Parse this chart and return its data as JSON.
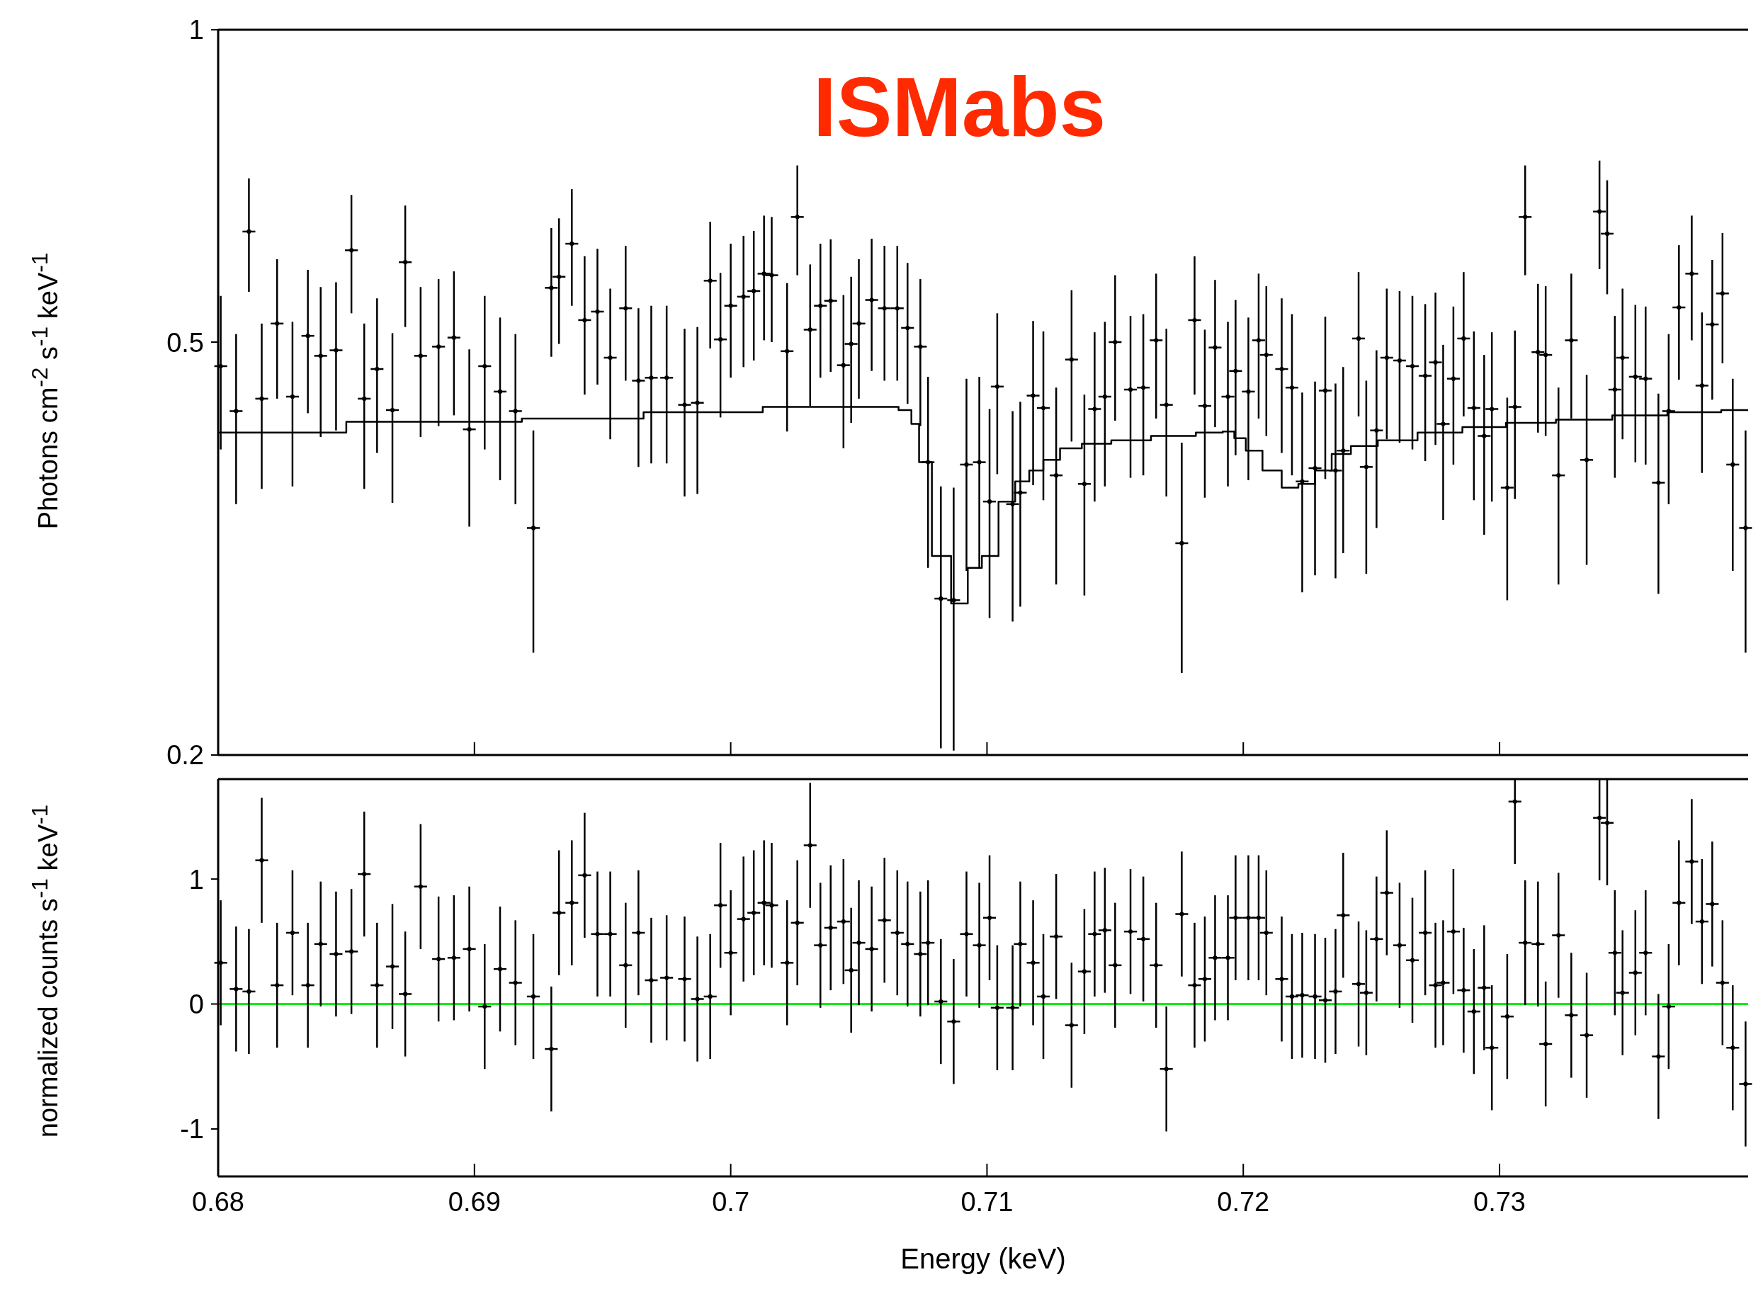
{
  "chart_data": [
    {
      "type": "scatter",
      "title": "ISMabs",
      "ylabel": "Photons cm$^{-2}$ s$^{-1}$ keV$^{-1}$",
      "log": "y",
      "tick_labels": "y",
      "xlim": [
        0.68,
        0.7397
      ],
      "xticks": [
        0.68,
        0.69,
        0.7,
        0.71,
        0.72,
        0.73
      ],
      "ylim": [
        0.2,
        1
      ],
      "yticks": [
        0.2,
        0.5,
        1
      ],
      "x": [
        0.6801,
        0.6807,
        0.6812,
        0.6817,
        0.6823,
        0.6829,
        0.6835,
        0.684,
        0.6846,
        0.6852,
        0.6857,
        0.6862,
        0.6868,
        0.6873,
        0.6879,
        0.6886,
        0.6892,
        0.6898,
        0.6904,
        0.691,
        0.6916,
        0.6923,
        0.693,
        0.6933,
        0.6938,
        0.6943,
        0.6948,
        0.6953,
        0.6959,
        0.6964,
        0.6969,
        0.6975,
        0.6982,
        0.6987,
        0.6992,
        0.6996,
        0.7,
        0.7005,
        0.7009,
        0.7013,
        0.7016,
        0.7022,
        0.7026,
        0.7031,
        0.7035,
        0.7039,
        0.7044,
        0.7047,
        0.705,
        0.7055,
        0.706,
        0.7065,
        0.7069,
        0.7074,
        0.7077,
        0.7082,
        0.7087,
        0.7092,
        0.7097,
        0.7101,
        0.7104,
        0.711,
        0.7113,
        0.7118,
        0.7122,
        0.7127,
        0.7133,
        0.7138,
        0.7142,
        0.7146,
        0.715,
        0.7156,
        0.7161,
        0.7166,
        0.717,
        0.7176,
        0.7181,
        0.7185,
        0.7189,
        0.7194,
        0.7197,
        0.7202,
        0.7206,
        0.7209,
        0.7215,
        0.7219,
        0.7223,
        0.7228,
        0.7232,
        0.7236,
        0.7239,
        0.7245,
        0.7248,
        0.7252,
        0.7256,
        0.7261,
        0.7266,
        0.7271,
        0.7275,
        0.7278,
        0.7282,
        0.7286,
        0.729,
        0.7294,
        0.7297,
        0.7303,
        0.7306,
        0.731,
        0.7315,
        0.7318,
        0.7323,
        0.7328,
        0.7334,
        0.7339,
        0.7342,
        0.7345,
        0.7348,
        0.7353,
        0.7357,
        0.7362,
        0.7366,
        0.737,
        0.7375,
        0.7379,
        0.7383,
        0.7387,
        0.7391,
        0.7396
      ],
      "series": [
        {
          "color": "#000000",
          "values": [
            0.474,
            0.429,
            0.639,
            0.441,
            0.521,
            0.443,
            0.507,
            0.485,
            0.491,
            0.613,
            0.441,
            0.471,
            0.43,
            0.597,
            0.485,
            0.495,
            0.505,
            0.412,
            0.474,
            0.448,
            0.429,
            0.331,
            0.564,
            0.578,
            0.622,
            0.525,
            0.535,
            0.483,
            0.539,
            0.459,
            0.462,
            0.462,
            0.435,
            0.437,
            0.573,
            0.503,
            0.542,
            0.553,
            0.56,
            0.582,
            0.58,
            0.49,
            0.66,
            0.514,
            0.542,
            0.548,
            0.475,
            0.498,
            0.521,
            0.549,
            0.539,
            0.539,
            0.516,
            0.495,
            0.383,
            0.283,
            0.282,
            0.381,
            0.383,
            0.351,
            0.453,
            0.349,
            0.358,
            0.444,
            0.432,
            0.372,
            0.481,
            0.365,
            0.431,
            0.443,
            0.5,
            0.45,
            0.452,
            0.502,
            0.435,
            0.32,
            0.525,
            0.434,
            0.494,
            0.443,
            0.469,
            0.448,
            0.502,
            0.486,
            0.471,
            0.452,
            0.367,
            0.378,
            0.449,
            0.376,
            0.393,
            0.504,
            0.379,
            0.411,
            0.483,
            0.48,
            0.474,
            0.464,
            0.478,
            0.417,
            0.461,
            0.504,
            0.432,
            0.406,
            0.431,
            0.362,
            0.433,
            0.66,
            0.489,
            0.486,
            0.372,
            0.502,
            0.385,
            0.668,
            0.636,
            0.45,
            0.483,
            0.463,
            0.461,
            0.366,
            0.429,
            0.54,
            0.582,
            0.454,
            0.52,
            0.557,
            0.381,
            0.331
          ],
          "errors": [
            0.08,
            0.08,
            0.08,
            0.08,
            0.08,
            0.08,
            0.08,
            0.08,
            0.08,
            0.08,
            0.08,
            0.08,
            0.08,
            0.08,
            0.08,
            0.08,
            0.08,
            0.08,
            0.08,
            0.08,
            0.08,
            0.08,
            0.08,
            0.08,
            0.08,
            0.08,
            0.08,
            0.08,
            0.08,
            0.08,
            0.08,
            0.08,
            0.08,
            0.08,
            0.08,
            0.08,
            0.08,
            0.08,
            0.08,
            0.08,
            0.08,
            0.08,
            0.08,
            0.08,
            0.08,
            0.08,
            0.08,
            0.08,
            0.08,
            0.08,
            0.08,
            0.08,
            0.08,
            0.08,
            0.08,
            0.08,
            0.08,
            0.08,
            0.08,
            0.08,
            0.08,
            0.08,
            0.08,
            0.08,
            0.08,
            0.08,
            0.08,
            0.08,
            0.08,
            0.08,
            0.08,
            0.08,
            0.08,
            0.08,
            0.08,
            0.08,
            0.08,
            0.08,
            0.08,
            0.08,
            0.08,
            0.08,
            0.08,
            0.08,
            0.08,
            0.08,
            0.08,
            0.08,
            0.08,
            0.08,
            0.08,
            0.08,
            0.08,
            0.08,
            0.08,
            0.08,
            0.08,
            0.08,
            0.08,
            0.08,
            0.08,
            0.08,
            0.08,
            0.08,
            0.08,
            0.08,
            0.08,
            0.08,
            0.08,
            0.08,
            0.08,
            0.08,
            0.08,
            0.08,
            0.08,
            0.08,
            0.08,
            0.08,
            0.08,
            0.08,
            0.08,
            0.08,
            0.08,
            0.08,
            0.08,
            0.08,
            0.08,
            0.08
          ],
          "xerrors": [
            0.00025,
            0.00025,
            0.00025,
            0.00025,
            0.00025,
            0.00025,
            0.00025,
            0.00025,
            0.00025,
            0.00025,
            0.00025,
            0.00025,
            0.00025,
            0.00025,
            0.00025,
            0.00025,
            0.00025,
            0.00025,
            0.00025,
            0.00025,
            0.00025,
            0.00025,
            0.00025,
            0.00025,
            0.00025,
            0.00025,
            0.00025,
            0.00025,
            0.00025,
            0.00025,
            0.00025,
            0.00025,
            0.00025,
            0.00025,
            0.00025,
            0.00025,
            0.00025,
            0.00025,
            0.00025,
            0.00025,
            0.00025,
            0.00025,
            0.00025,
            0.00025,
            0.00025,
            0.00025,
            0.00025,
            0.00025,
            0.00025,
            0.00025,
            0.00025,
            0.00025,
            0.00025,
            0.00025,
            0.00025,
            0.00025,
            0.00025,
            0.00025,
            0.00025,
            0.00025,
            0.00025,
            0.00025,
            0.00025,
            0.00025,
            0.00025,
            0.00025,
            0.00025,
            0.00025,
            0.00025,
            0.00025,
            0.00025,
            0.00025,
            0.00025,
            0.00025,
            0.00025,
            0.00025,
            0.00025,
            0.00025,
            0.00025,
            0.00025,
            0.00025,
            0.00025,
            0.00025,
            0.00025,
            0.00025,
            0.00025,
            0.00025,
            0.00025,
            0.00025,
            0.00025,
            0.00025,
            0.00025,
            0.00025,
            0.00025,
            0.00025,
            0.00025,
            0.00025,
            0.00025,
            0.00025,
            0.00025,
            0.00025,
            0.00025,
            0.00025,
            0.00025,
            0.00025,
            0.00025,
            0.00025,
            0.00025,
            0.00025,
            0.00025,
            0.00025,
            0.00025,
            0.00025,
            0.00025,
            0.00025,
            0.00025,
            0.00025,
            0.00025,
            0.00025,
            0.00025,
            0.00025,
            0.00025,
            0.00025,
            0.00025,
            0.00025,
            0.00025,
            0.00025,
            0.00025
          ]
        },
        {
          "type": "step",
          "color": "#000000",
          "x": [
            0.68,
            0.69,
            0.6937,
            0.6995,
            0.703,
            0.7062,
            0.7069,
            0.7072,
            0.7075,
            0.7082,
            0.709,
            0.7095,
            0.7101,
            0.7108,
            0.7114,
            0.7119,
            0.7125,
            0.7132,
            0.7142,
            0.7155,
            0.7173,
            0.719,
            0.7194,
            0.7199,
            0.7203,
            0.7212,
            0.7218,
            0.7225,
            0.7231,
            0.7238,
            0.7246,
            0.7259,
            0.7277,
            0.7294,
            0.7311,
            0.7333,
            0.7355,
            0.7376,
            0.7397
          ],
          "values": [
            0.409,
            0.419,
            0.422,
            0.428,
            0.433,
            0.433,
            0.43,
            0.417,
            0.383,
            0.311,
            0.28,
            0.303,
            0.311,
            0.351,
            0.367,
            0.376,
            0.385,
            0.395,
            0.399,
            0.402,
            0.406,
            0.409,
            0.41,
            0.404,
            0.393,
            0.376,
            0.362,
            0.365,
            0.376,
            0.39,
            0.397,
            0.402,
            0.409,
            0.414,
            0.418,
            0.421,
            0.425,
            0.428,
            0.43
          ]
        }
      ]
    },
    {
      "type": "scatter",
      "xlabel": "Energy (keV)",
      "ylabel": "normalized counts s$^{-1}$ keV$^{-1}$",
      "xlim": [
        0.68,
        0.7397
      ],
      "xticks": [
        0.68,
        0.69,
        0.7,
        0.71,
        0.72,
        0.73
      ],
      "ylim": [
        -1.38,
        1.8
      ],
      "yticks": [
        -1,
        0,
        1
      ],
      "ref_lines": [
        {
          "axis": "y",
          "value": 0,
          "color": "#00ee00"
        }
      ],
      "x": [
        0.6801,
        0.6807,
        0.6812,
        0.6817,
        0.6823,
        0.6829,
        0.6835,
        0.684,
        0.6846,
        0.6852,
        0.6857,
        0.6862,
        0.6868,
        0.6873,
        0.6879,
        0.6886,
        0.6892,
        0.6898,
        0.6904,
        0.691,
        0.6916,
        0.6923,
        0.693,
        0.6933,
        0.6938,
        0.6943,
        0.6948,
        0.6953,
        0.6959,
        0.6964,
        0.6969,
        0.6975,
        0.6982,
        0.6987,
        0.6992,
        0.6996,
        0.7,
        0.7005,
        0.7009,
        0.7013,
        0.7016,
        0.7022,
        0.7026,
        0.7031,
        0.7035,
        0.7039,
        0.7044,
        0.7047,
        0.705,
        0.7055,
        0.706,
        0.7065,
        0.7069,
        0.7074,
        0.7077,
        0.7082,
        0.7087,
        0.7092,
        0.7097,
        0.7101,
        0.7104,
        0.711,
        0.7113,
        0.7118,
        0.7122,
        0.7127,
        0.7133,
        0.7138,
        0.7142,
        0.7146,
        0.715,
        0.7156,
        0.7161,
        0.7166,
        0.717,
        0.7176,
        0.7181,
        0.7185,
        0.7189,
        0.7194,
        0.7197,
        0.7202,
        0.7206,
        0.7209,
        0.7215,
        0.7219,
        0.7223,
        0.7228,
        0.7232,
        0.7236,
        0.7239,
        0.7245,
        0.7248,
        0.7252,
        0.7256,
        0.7261,
        0.7266,
        0.7271,
        0.7275,
        0.7278,
        0.7282,
        0.7286,
        0.729,
        0.7294,
        0.7297,
        0.7303,
        0.7306,
        0.731,
        0.7315,
        0.7318,
        0.7323,
        0.7328,
        0.7334,
        0.7339,
        0.7342,
        0.7345,
        0.7348,
        0.7353,
        0.7357,
        0.7362,
        0.7366,
        0.737,
        0.7375,
        0.7379,
        0.7383,
        0.7387,
        0.7391,
        0.7396
      ],
      "series": [
        {
          "color": "#000000",
          "values": [
            0.33,
            0.12,
            0.1,
            1.15,
            0.15,
            0.57,
            0.15,
            0.48,
            0.4,
            0.42,
            1.04,
            0.15,
            0.3,
            0.08,
            0.94,
            0.36,
            0.37,
            0.44,
            -0.02,
            0.28,
            0.17,
            0.06,
            -0.36,
            0.73,
            0.81,
            1.03,
            0.56,
            0.56,
            0.31,
            0.57,
            0.19,
            0.21,
            0.2,
            0.04,
            0.06,
            0.79,
            0.41,
            0.68,
            0.73,
            0.81,
            0.79,
            0.33,
            0.65,
            1.27,
            0.47,
            0.61,
            0.66,
            0.27,
            0.49,
            0.44,
            0.67,
            0.57,
            0.48,
            0.4,
            0.49,
            0.02,
            -0.14,
            0.56,
            0.47,
            0.69,
            -0.03,
            -0.03,
            0.48,
            0.33,
            0.06,
            0.54,
            -0.17,
            0.26,
            0.56,
            0.59,
            0.31,
            0.58,
            0.52,
            0.31,
            -0.52,
            0.72,
            0.15,
            0.2,
            0.37,
            0.37,
            0.69,
            0.69,
            0.69,
            0.57,
            0.2,
            0.06,
            0.07,
            0.06,
            0.03,
            0.1,
            0.71,
            0.16,
            0.09,
            0.52,
            0.89,
            0.47,
            0.35,
            0.57,
            0.15,
            0.17,
            0.58,
            0.11,
            -0.06,
            0.13,
            -0.35,
            -0.1,
            1.62,
            0.49,
            0.48,
            -0.32,
            0.55,
            -0.09,
            -0.25,
            1.49,
            1.45,
            0.41,
            0.09,
            0.25,
            0.41,
            -0.42,
            -0.02,
            0.81,
            1.14,
            0.66,
            0.8,
            0.17,
            -0.35,
            -0.64
          ],
          "errors": [
            0.5,
            0.5,
            0.5,
            0.5,
            0.5,
            0.5,
            0.5,
            0.5,
            0.5,
            0.5,
            0.5,
            0.5,
            0.5,
            0.5,
            0.5,
            0.5,
            0.5,
            0.5,
            0.5,
            0.5,
            0.5,
            0.5,
            0.5,
            0.5,
            0.5,
            0.5,
            0.5,
            0.5,
            0.5,
            0.5,
            0.5,
            0.5,
            0.5,
            0.5,
            0.5,
            0.5,
            0.5,
            0.5,
            0.5,
            0.5,
            0.5,
            0.5,
            0.5,
            0.5,
            0.5,
            0.5,
            0.5,
            0.5,
            0.5,
            0.5,
            0.5,
            0.5,
            0.5,
            0.5,
            0.5,
            0.5,
            0.5,
            0.5,
            0.5,
            0.5,
            0.5,
            0.5,
            0.5,
            0.5,
            0.5,
            0.5,
            0.5,
            0.5,
            0.5,
            0.5,
            0.5,
            0.5,
            0.5,
            0.5,
            0.5,
            0.5,
            0.5,
            0.5,
            0.5,
            0.5,
            0.5,
            0.5,
            0.5,
            0.5,
            0.5,
            0.5,
            0.5,
            0.5,
            0.5,
            0.5,
            0.5,
            0.5,
            0.5,
            0.5,
            0.5,
            0.5,
            0.5,
            0.5,
            0.5,
            0.5,
            0.5,
            0.5,
            0.5,
            0.5,
            0.5,
            0.5,
            [
              1.12,
              1.8
            ],
            0.5,
            0.5,
            0.5,
            0.5,
            0.5,
            0.5,
            [
              0.99,
              1.8
            ],
            [
              0.95,
              1.8
            ],
            0.5,
            0.5,
            0.5,
            0.5,
            0.5,
            0.5,
            0.5,
            0.5,
            0.5,
            0.5,
            0.5,
            0.5,
            0.5
          ],
          "xerrors": [
            0.00025,
            0.00025,
            0.00025,
            0.00025,
            0.00025,
            0.00025,
            0.00025,
            0.00025,
            0.00025,
            0.00025,
            0.00025,
            0.00025,
            0.00025,
            0.00025,
            0.00025,
            0.00025,
            0.00025,
            0.00025,
            0.00025,
            0.00025,
            0.00025,
            0.00025,
            0.00025,
            0.00025,
            0.00025,
            0.00025,
            0.00025,
            0.00025,
            0.00025,
            0.00025,
            0.00025,
            0.00025,
            0.00025,
            0.00025,
            0.00025,
            0.00025,
            0.00025,
            0.00025,
            0.00025,
            0.00025,
            0.00025,
            0.00025,
            0.00025,
            0.00025,
            0.00025,
            0.00025,
            0.00025,
            0.00025,
            0.00025,
            0.00025,
            0.00025,
            0.00025,
            0.00025,
            0.00025,
            0.00025,
            0.00025,
            0.00025,
            0.00025,
            0.00025,
            0.00025,
            0.00025,
            0.00025,
            0.00025,
            0.00025,
            0.00025,
            0.00025,
            0.00025,
            0.00025,
            0.00025,
            0.00025,
            0.00025,
            0.00025,
            0.00025,
            0.00025,
            0.00025,
            0.00025,
            0.00025,
            0.00025,
            0.00025,
            0.00025,
            0.00025,
            0.00025,
            0.00025,
            0.00025,
            0.00025,
            0.00025,
            0.00025,
            0.00025,
            0.00025,
            0.00025,
            0.00025,
            0.00025,
            0.00025,
            0.00025,
            0.00025,
            0.00025,
            0.00025,
            0.00025,
            0.00025,
            0.00025,
            0.00025,
            0.00025,
            0.00025,
            0.00025,
            0.00025,
            0.00025,
            0.00025,
            0.00025,
            0.00025,
            0.00025,
            0.00025,
            0.00025,
            0.00025,
            0.00025,
            0.00025,
            0.00025,
            0.00025,
            0.00025,
            0.00025,
            0.00025,
            0.00025,
            0.00025,
            0.00025,
            0.00025,
            0.00025,
            0.00025,
            0.00025,
            0.00025
          ]
        }
      ]
    }
  ]
}
